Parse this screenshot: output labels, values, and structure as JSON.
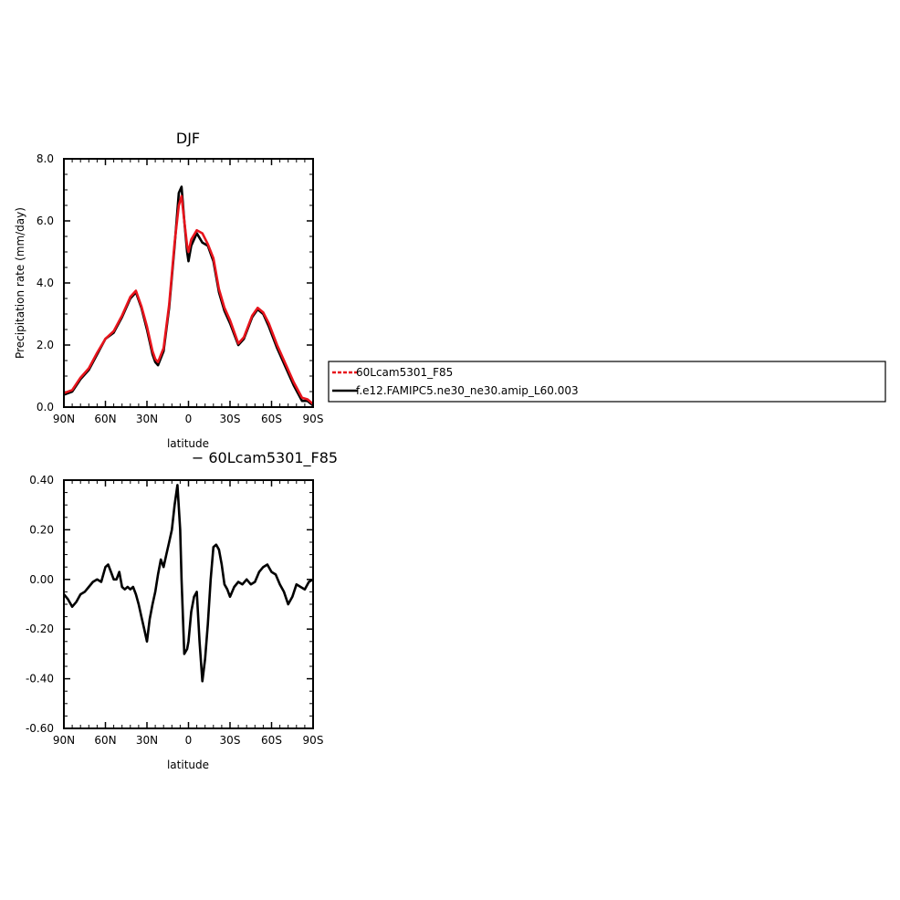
{
  "chart_data": [
    {
      "type": "line",
      "title": "DJF",
      "xlabel": "latitude",
      "ylabel": "Precipitation rate (mm/day)",
      "xlim": [
        90,
        -90
      ],
      "ylim": [
        0,
        8
      ],
      "x_ticks": [
        {
          "value": 90,
          "label": "90N"
        },
        {
          "value": 60,
          "label": "60N"
        },
        {
          "value": 30,
          "label": "30N"
        },
        {
          "value": 0,
          "label": "0"
        },
        {
          "value": -30,
          "label": "30S"
        },
        {
          "value": -60,
          "label": "60S"
        },
        {
          "value": -90,
          "label": "90S"
        }
      ],
      "y_ticks": [
        {
          "value": 0,
          "label": "0.0"
        },
        {
          "value": 2,
          "label": "2.0"
        },
        {
          "value": 4,
          "label": "4.0"
        },
        {
          "value": 6,
          "label": "6.0"
        },
        {
          "value": 8,
          "label": "8.0"
        }
      ],
      "legend": {
        "placement": "right",
        "entries": [
          {
            "label": "60Lcam5301_F85",
            "color": "#e8141c",
            "dash": "dashed"
          },
          {
            "label": "f.e12.FAMIPC5.ne30_ne30.amip_L60.003",
            "color": "#000000",
            "dash": "solid"
          }
        ]
      },
      "series": [
        {
          "name": "f.e12.FAMIPC5.ne30_ne30.amip_L60.003",
          "color": "#000000",
          "x": [
            90,
            84,
            78,
            72,
            66,
            60,
            54,
            48,
            42,
            38,
            34,
            30,
            26,
            24,
            22,
            18,
            14,
            10,
            7,
            5,
            3,
            1,
            0,
            -2,
            -6,
            -10,
            -14,
            -18,
            -22,
            -26,
            -30,
            -36,
            -40,
            -46,
            -50,
            -54,
            -58,
            -64,
            -70,
            -76,
            -82,
            -86,
            -90
          ],
          "y": [
            0.4,
            0.5,
            0.9,
            1.2,
            1.7,
            2.2,
            2.4,
            2.9,
            3.5,
            3.7,
            3.2,
            2.5,
            1.7,
            1.45,
            1.35,
            1.8,
            3.2,
            5.2,
            6.9,
            7.1,
            6.0,
            5.0,
            4.7,
            5.2,
            5.6,
            5.3,
            5.2,
            4.7,
            3.7,
            3.1,
            2.7,
            2.0,
            2.2,
            2.9,
            3.15,
            3.0,
            2.6,
            1.9,
            1.3,
            0.7,
            0.2,
            0.2,
            0.05
          ]
        },
        {
          "name": "60Lcam5301_F85",
          "color": "#e8141c",
          "x": [
            90,
            84,
            78,
            72,
            66,
            60,
            54,
            48,
            42,
            38,
            34,
            30,
            26,
            24,
            22,
            18,
            14,
            10,
            7,
            5,
            3,
            1,
            0,
            -2,
            -6,
            -10,
            -14,
            -18,
            -22,
            -26,
            -30,
            -36,
            -40,
            -46,
            -50,
            -54,
            -58,
            -64,
            -70,
            -76,
            -82,
            -86,
            -90
          ],
          "y": [
            0.45,
            0.55,
            0.95,
            1.25,
            1.75,
            2.2,
            2.45,
            2.95,
            3.55,
            3.75,
            3.25,
            2.6,
            1.8,
            1.55,
            1.45,
            1.9,
            3.3,
            5.3,
            6.5,
            6.8,
            6.0,
            5.2,
            5.0,
            5.4,
            5.7,
            5.6,
            5.25,
            4.8,
            3.8,
            3.2,
            2.8,
            2.05,
            2.25,
            2.95,
            3.2,
            3.05,
            2.7,
            2.0,
            1.4,
            0.8,
            0.3,
            0.25,
            0.1
          ]
        }
      ]
    },
    {
      "type": "line",
      "title": "− 60Lcam5301_F85",
      "xlabel": "latitude",
      "ylabel": "",
      "xlim": [
        90,
        -90
      ],
      "ylim": [
        -0.6,
        0.4
      ],
      "x_ticks": [
        {
          "value": 90,
          "label": "90N"
        },
        {
          "value": 60,
          "label": "60N"
        },
        {
          "value": 30,
          "label": "30N"
        },
        {
          "value": 0,
          "label": "0"
        },
        {
          "value": -30,
          "label": "30S"
        },
        {
          "value": -60,
          "label": "60S"
        },
        {
          "value": -90,
          "label": "90S"
        }
      ],
      "y_ticks": [
        {
          "value": -0.6,
          "label": "-0.60"
        },
        {
          "value": -0.4,
          "label": "-0.40"
        },
        {
          "value": -0.2,
          "label": "-0.20"
        },
        {
          "value": 0,
          "label": "0.00"
        },
        {
          "value": 0.2,
          "label": "0.20"
        },
        {
          "value": 0.4,
          "label": "0.40"
        }
      ],
      "series": [
        {
          "color": "#000000",
          "x": [
            90,
            87,
            84,
            81,
            78,
            75,
            72,
            69,
            66,
            63,
            60,
            58,
            56,
            54,
            52,
            50,
            48,
            46,
            44,
            42,
            40,
            38,
            36,
            34,
            32,
            30,
            28,
            26,
            24,
            22,
            20,
            18,
            16,
            14,
            12,
            10,
            8,
            6,
            5,
            3,
            1,
            0,
            -2,
            -4,
            -6,
            -8,
            -10,
            -12,
            -14,
            -16,
            -18,
            -20,
            -22,
            -24,
            -26,
            -28,
            -30,
            -33,
            -36,
            -39,
            -42,
            -45,
            -48,
            -51,
            -54,
            -57,
            -60,
            -63,
            -66,
            -69,
            -72,
            -75,
            -78,
            -81,
            -84,
            -87,
            -90
          ],
          "y": [
            -0.06,
            -0.08,
            -0.11,
            -0.09,
            -0.06,
            -0.05,
            -0.03,
            -0.01,
            0.0,
            -0.01,
            0.05,
            0.06,
            0.03,
            0.0,
            0.0,
            0.03,
            -0.03,
            -0.04,
            -0.03,
            -0.04,
            -0.03,
            -0.06,
            -0.1,
            -0.15,
            -0.2,
            -0.25,
            -0.16,
            -0.1,
            -0.05,
            0.02,
            0.08,
            0.05,
            0.1,
            0.15,
            0.2,
            0.3,
            0.38,
            0.2,
            0.0,
            -0.3,
            -0.28,
            -0.25,
            -0.13,
            -0.07,
            -0.05,
            -0.25,
            -0.41,
            -0.32,
            -0.18,
            0.0,
            0.13,
            0.14,
            0.12,
            0.06,
            -0.02,
            -0.04,
            -0.07,
            -0.03,
            -0.01,
            -0.02,
            -0.0,
            -0.02,
            -0.01,
            0.03,
            0.05,
            0.06,
            0.03,
            0.02,
            -0.02,
            -0.05,
            -0.1,
            -0.07,
            -0.02,
            -0.03,
            -0.04,
            -0.01,
            0.0
          ]
        }
      ]
    }
  ]
}
